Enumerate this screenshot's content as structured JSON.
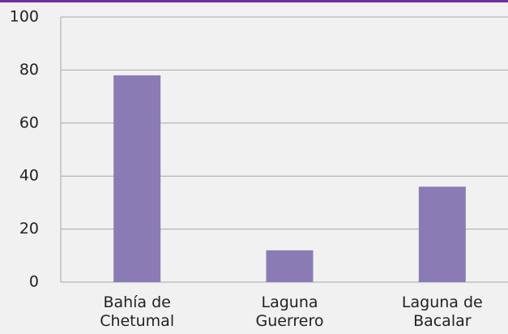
{
  "chart_data": {
    "type": "bar",
    "categories": [
      "Bahía de Chetumal",
      "Laguna Guerrero",
      "Laguna de Bacalar"
    ],
    "values": [
      78,
      12,
      36
    ],
    "color": "#8b7bb5",
    "ylim": [
      0,
      100
    ],
    "yticks": [
      0,
      20,
      40,
      60,
      80,
      100
    ],
    "grid": true
  }
}
